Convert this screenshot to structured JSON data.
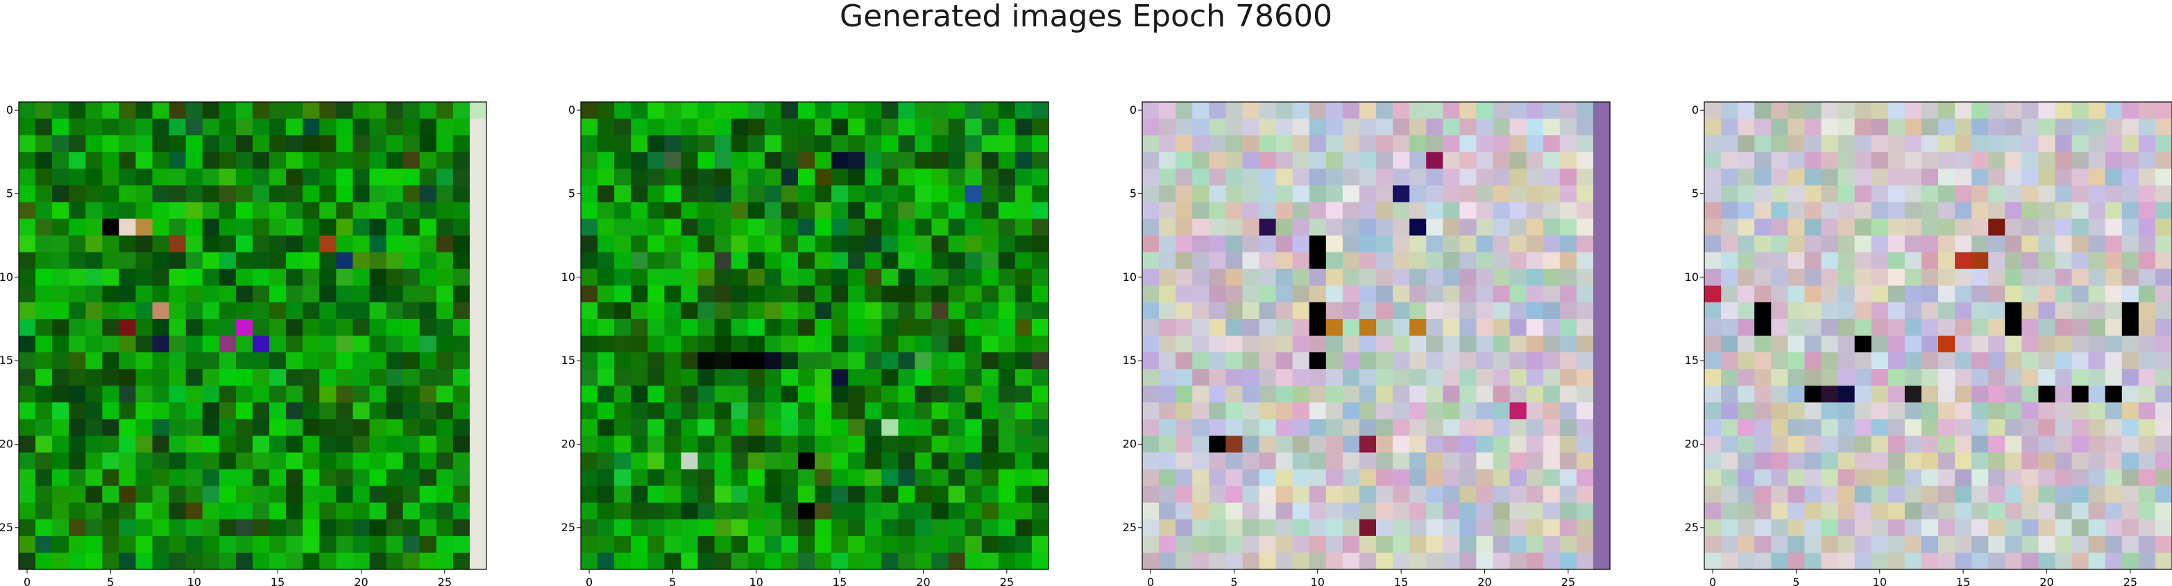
{
  "figure": {
    "title": "Generated images Epoch 78600"
  },
  "chart_data": [
    {
      "type": "heatmap",
      "grid_size": [
        28,
        28
      ],
      "x_ticks": [
        0,
        5,
        10,
        15,
        20,
        25
      ],
      "y_ticks": [
        0,
        5,
        10,
        15,
        20,
        25
      ],
      "xlim": [
        -0.5,
        27.5
      ],
      "ylim": [
        27.5,
        -0.5
      ],
      "palette": "green",
      "seed": 11,
      "features": [
        {
          "x": 5,
          "y": 7,
          "color": "#000000"
        },
        {
          "x": 6,
          "y": 7,
          "color": "#e8d7c8"
        },
        {
          "x": 7,
          "y": 7,
          "color": "#b98b3c"
        },
        {
          "x": 9,
          "y": 8,
          "color": "#8b3b16"
        },
        {
          "x": 18,
          "y": 8,
          "color": "#a43f16"
        },
        {
          "x": 19,
          "y": 9,
          "color": "#12306e"
        },
        {
          "x": 8,
          "y": 12,
          "color": "#c48a6a"
        },
        {
          "x": 13,
          "y": 13,
          "color": "#c319c9"
        },
        {
          "x": 12,
          "y": 14,
          "color": "#8d3a7a"
        },
        {
          "x": 14,
          "y": 14,
          "color": "#3a10b8"
        },
        {
          "x": 6,
          "y": 13,
          "color": "#7a1414"
        },
        {
          "x": 8,
          "y": 14,
          "color": "#121a45"
        },
        {
          "x": 27,
          "y": 0,
          "color": "#bfe8bf"
        }
      ],
      "right_edge_color": "#e6e6dc"
    },
    {
      "type": "heatmap",
      "grid_size": [
        28,
        28
      ],
      "x_ticks": [
        0,
        5,
        10,
        15,
        20,
        25
      ],
      "y_ticks": [
        0,
        5,
        10,
        15,
        20,
        25
      ],
      "xlim": [
        -0.5,
        27.5
      ],
      "ylim": [
        27.5,
        -0.5
      ],
      "palette": "green",
      "seed": 23,
      "features": [
        {
          "x": 15,
          "y": 3,
          "color": "#06102e"
        },
        {
          "x": 16,
          "y": 3,
          "color": "#0a1a33"
        },
        {
          "x": 23,
          "y": 5,
          "color": "#1e4e9e"
        },
        {
          "x": 12,
          "y": 4,
          "color": "#0b3030"
        },
        {
          "x": 7,
          "y": 15,
          "color": "#030a05"
        },
        {
          "x": 8,
          "y": 15,
          "color": "#08130a"
        },
        {
          "x": 9,
          "y": 15,
          "color": "#000000"
        },
        {
          "x": 10,
          "y": 15,
          "color": "#010404"
        },
        {
          "x": 11,
          "y": 15,
          "color": "#0a0c20"
        },
        {
          "x": 15,
          "y": 16,
          "color": "#0b1538"
        },
        {
          "x": 13,
          "y": 21,
          "color": "#000000"
        },
        {
          "x": 13,
          "y": 24,
          "color": "#000000"
        },
        {
          "x": 6,
          "y": 21,
          "color": "#c3d8c3"
        },
        {
          "x": 18,
          "y": 19,
          "color": "#a8e0a8"
        }
      ]
    },
    {
      "type": "heatmap",
      "grid_size": [
        28,
        28
      ],
      "x_ticks": [
        0,
        5,
        10,
        15,
        20,
        25
      ],
      "y_ticks": [
        0,
        5,
        10,
        15,
        20,
        25
      ],
      "xlim": [
        -0.5,
        27.5
      ],
      "ylim": [
        27.5,
        -0.5
      ],
      "palette": "pastel",
      "seed": 37,
      "features": [
        {
          "x": 10,
          "y": 8,
          "color": "#000000"
        },
        {
          "x": 10,
          "y": 9,
          "color": "#000000"
        },
        {
          "x": 10,
          "y": 12,
          "color": "#000000"
        },
        {
          "x": 10,
          "y": 13,
          "color": "#000000"
        },
        {
          "x": 10,
          "y": 15,
          "color": "#000000"
        },
        {
          "x": 4,
          "y": 20,
          "color": "#000000"
        },
        {
          "x": 5,
          "y": 20,
          "color": "#8a3a20"
        },
        {
          "x": 15,
          "y": 5,
          "color": "#1a1060"
        },
        {
          "x": 16,
          "y": 7,
          "color": "#08084a"
        },
        {
          "x": 7,
          "y": 7,
          "color": "#2a1050"
        },
        {
          "x": 17,
          "y": 3,
          "color": "#8a1050"
        },
        {
          "x": 13,
          "y": 20,
          "color": "#8a1a3a"
        },
        {
          "x": 22,
          "y": 18,
          "color": "#c01e6a"
        },
        {
          "x": 13,
          "y": 25,
          "color": "#7a1430"
        },
        {
          "x": 11,
          "y": 13,
          "color": "#c07a1a"
        },
        {
          "x": 13,
          "y": 13,
          "color": "#c07a1a"
        },
        {
          "x": 16,
          "y": 13,
          "color": "#c07a1a"
        }
      ],
      "right_edge_color": "#8a6aa8"
    },
    {
      "type": "heatmap",
      "grid_size": [
        28,
        28
      ],
      "x_ticks": [
        0,
        5,
        10,
        15,
        20,
        25
      ],
      "y_ticks": [
        0,
        5,
        10,
        15,
        20,
        25
      ],
      "xlim": [
        -0.5,
        27.5
      ],
      "ylim": [
        27.5,
        -0.5
      ],
      "palette": "pastel",
      "seed": 51,
      "features": [
        {
          "x": 3,
          "y": 12,
          "color": "#000000"
        },
        {
          "x": 3,
          "y": 13,
          "color": "#000000"
        },
        {
          "x": 18,
          "y": 12,
          "color": "#000000"
        },
        {
          "x": 18,
          "y": 13,
          "color": "#000000"
        },
        {
          "x": 25,
          "y": 12,
          "color": "#000000"
        },
        {
          "x": 25,
          "y": 13,
          "color": "#000000"
        },
        {
          "x": 9,
          "y": 14,
          "color": "#000000"
        },
        {
          "x": 6,
          "y": 17,
          "color": "#000000"
        },
        {
          "x": 7,
          "y": 17,
          "color": "#2a1030"
        },
        {
          "x": 8,
          "y": 17,
          "color": "#0a0a40"
        },
        {
          "x": 12,
          "y": 17,
          "color": "#1a1a1a"
        },
        {
          "x": 20,
          "y": 17,
          "color": "#000000"
        },
        {
          "x": 22,
          "y": 17,
          "color": "#000000"
        },
        {
          "x": 24,
          "y": 17,
          "color": "#000000"
        },
        {
          "x": 17,
          "y": 7,
          "color": "#7a1a10"
        },
        {
          "x": 15,
          "y": 9,
          "color": "#c0301e"
        },
        {
          "x": 16,
          "y": 9,
          "color": "#a63a10"
        },
        {
          "x": 0,
          "y": 11,
          "color": "#c01e40"
        },
        {
          "x": 14,
          "y": 14,
          "color": "#c03a10"
        }
      ]
    }
  ]
}
